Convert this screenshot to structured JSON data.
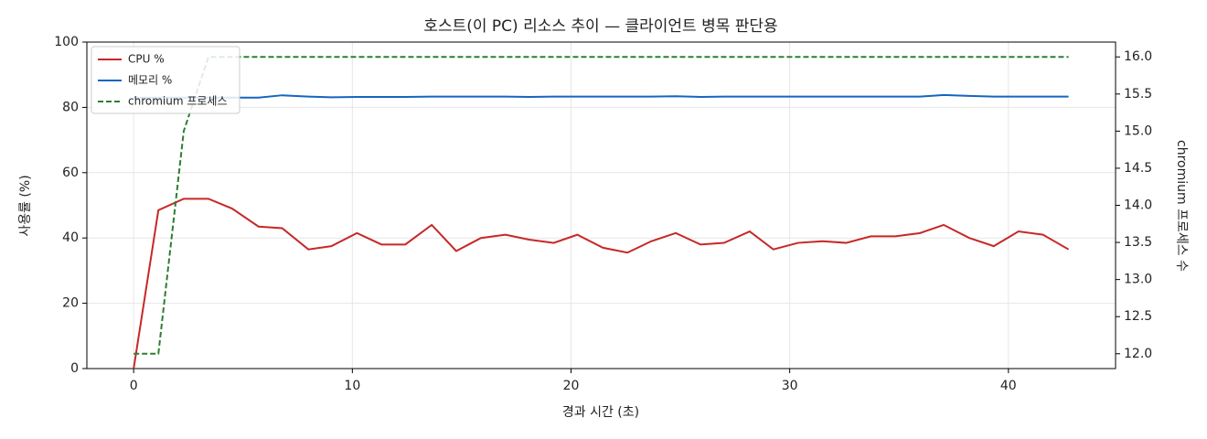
{
  "chart_data": {
    "type": "line",
    "title": "호스트(이 PC) 리소스 추이 — 클라이언트 병목 판단용",
    "x_label": "경과 시간 (초)",
    "y_label": "사용률 (%)",
    "y2_label": "chromium 프로세스 수",
    "x": [
      0,
      1.13,
      2.29,
      3.42,
      4.5,
      5.71,
      6.79,
      7.99,
      9.04,
      10.21,
      11.33,
      12.42,
      13.63,
      14.75,
      15.88,
      17.0,
      18.08,
      19.21,
      20.29,
      21.46,
      22.58,
      23.67,
      24.79,
      25.92,
      27.0,
      28.17,
      29.25,
      30.38,
      31.5,
      32.58,
      33.71,
      34.83,
      35.96,
      37.04,
      38.21,
      39.33,
      40.46,
      41.58,
      42.75
    ],
    "series": [
      {
        "name": "CPU %",
        "color": "#c62828",
        "dash": false,
        "values": [
          0,
          48.5,
          52,
          52,
          49,
          43.5,
          43,
          36.5,
          37.5,
          41.5,
          38,
          38,
          44,
          36,
          40,
          41,
          39.5,
          38.5,
          41,
          37,
          35.5,
          39,
          41.5,
          38,
          38.5,
          42,
          36.5,
          38.5,
          39,
          38.5,
          40.5,
          40.5,
          41.5,
          44,
          40,
          37.5,
          42,
          41,
          36.5
        ]
      },
      {
        "name": "메모리 %",
        "color": "#1565c0",
        "dash": false,
        "values": [
          83,
          83,
          83,
          83,
          83,
          83,
          83.7,
          83.3,
          83.1,
          83.2,
          83.2,
          83.2,
          83.3,
          83.3,
          83.3,
          83.3,
          83.2,
          83.3,
          83.3,
          83.3,
          83.3,
          83.3,
          83.4,
          83.2,
          83.3,
          83.3,
          83.3,
          83.3,
          83.3,
          83.3,
          83.3,
          83.3,
          83.3,
          83.8,
          83.5,
          83.3,
          83.3,
          83.3,
          83.3
        ]
      },
      {
        "name": "chromium 프로세스",
        "color": "#2e7d32",
        "dash": true,
        "axis": "y2",
        "values": [
          12,
          12,
          15,
          16,
          16,
          16,
          16,
          16,
          16,
          16,
          16,
          16,
          16,
          16,
          16,
          16,
          16,
          16,
          16,
          16,
          16,
          16,
          16,
          16,
          16,
          16,
          16,
          16,
          16,
          16,
          16,
          16,
          16,
          16,
          16,
          16,
          16,
          16,
          16
        ]
      }
    ],
    "xlim": [
      -2.14,
      44.9
    ],
    "xticks": [
      0,
      10,
      20,
      30,
      40
    ],
    "ylim": [
      0,
      100
    ],
    "yticks": [
      0,
      20,
      40,
      60,
      80,
      100
    ],
    "y2lim": [
      11.8,
      16.2
    ],
    "y2ticks": [
      {
        "value": 12,
        "label": "12.0"
      },
      {
        "value": 12.5,
        "label": "12.5"
      },
      {
        "value": 13,
        "label": "13.0"
      },
      {
        "value": 13.5,
        "label": "13.5"
      },
      {
        "value": 14,
        "label": "14.0"
      },
      {
        "value": 14.5,
        "label": "14.5"
      },
      {
        "value": 15,
        "label": "15.0"
      },
      {
        "value": 15.5,
        "label": "15.5"
      },
      {
        "value": 16,
        "label": "16.0"
      }
    ],
    "grid": true,
    "legend": "upper-left"
  }
}
